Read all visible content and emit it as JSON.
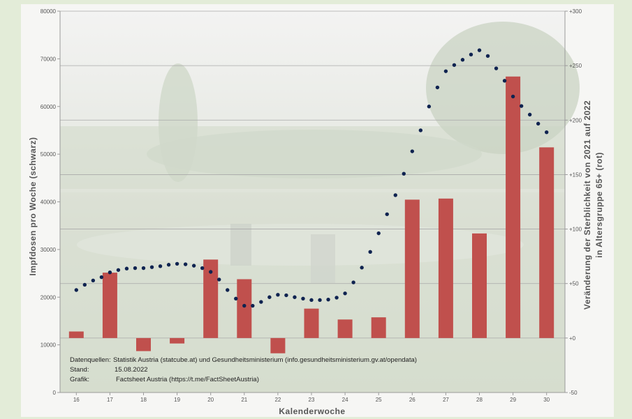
{
  "chart_data": {
    "type": "bar+line",
    "xlabel": "Kalenderwoche",
    "ylabel_left": "Impfdosen  pro Woche  (schwarz)",
    "ylabel_right_line1": "Veränderung  der  Sterblichkeit  von  2021 auf 2022",
    "ylabel_right_line2": "in  Altersgruppe  65+ (rot)",
    "categories": [
      "16",
      "17",
      "18",
      "19",
      "20",
      "21",
      "22",
      "23",
      "24",
      "25",
      "26",
      "27",
      "28",
      "29",
      "30"
    ],
    "left_axis": {
      "min": 0,
      "max": 80000,
      "ticks": [
        0,
        10000,
        20000,
        30000,
        40000,
        50000,
        60000,
        70000,
        80000
      ],
      "tick_labels": [
        "0",
        "10000",
        "20000",
        "30000",
        "40000",
        "50000",
        "60000",
        "70000",
        "80000"
      ]
    },
    "right_axis": {
      "min": -50,
      "max": 300,
      "ticks": [
        -50,
        0,
        50,
        100,
        150,
        200,
        250,
        300
      ],
      "tick_labels": [
        "-50",
        "+0",
        "+50",
        "+100",
        "+150",
        "+200",
        "+250",
        "+300"
      ]
    },
    "series": [
      {
        "axis": "right",
        "kind": "bar",
        "color": "#c0504d",
        "values": [
          6,
          60,
          -12,
          -5,
          72,
          54,
          -14,
          27,
          17,
          19,
          127,
          128,
          96,
          240,
          175
        ]
      },
      {
        "axis": "left",
        "kind": "dotted-line",
        "color": "#0f2350",
        "x": [
          16,
          16.25,
          16.5,
          16.75,
          17,
          17.25,
          17.5,
          17.75,
          18,
          18.25,
          18.5,
          18.75,
          19,
          19.25,
          19.5,
          19.75,
          20,
          20.25,
          20.5,
          20.75,
          21,
          21.25,
          21.5,
          21.75,
          22,
          22.25,
          22.5,
          22.75,
          23,
          23.25,
          23.5,
          23.75,
          24,
          24.25,
          24.5,
          24.75,
          25,
          25.25,
          25.5,
          25.75,
          26,
          26.25,
          26.5,
          26.75,
          27,
          27.25,
          27.5,
          27.75,
          28,
          28.25,
          28.5,
          28.75,
          29,
          29.25,
          29.5,
          29.75,
          30
        ],
        "values": [
          21500,
          22600,
          23500,
          24200,
          25200,
          25700,
          26000,
          26100,
          26100,
          26300,
          26500,
          26800,
          27000,
          26900,
          26600,
          26100,
          25300,
          23700,
          21500,
          19700,
          18200,
          18200,
          19000,
          20000,
          20500,
          20400,
          20000,
          19700,
          19400,
          19400,
          19500,
          19900,
          20800,
          23100,
          26200,
          29500,
          33400,
          37400,
          41400,
          45900,
          50600,
          55000,
          60000,
          64000,
          67400,
          68700,
          69800,
          70900,
          71800,
          70600,
          68000,
          65400,
          62100,
          60100,
          58300,
          56400,
          54600
        ]
      }
    ],
    "credits": {
      "l1_key": "Datenquellen:",
      "l1_val": "Statistik Austria (statcube.at) und Gesundheitsministerium (info.gesundheitsministerium.gv.at/opendata)",
      "l2_key": "Stand:",
      "l2_val": "15.08.2022",
      "l3_key": "Grafik:",
      "l3_val": "Factsheet Austria (https://t.me/FactSheetAustria)"
    },
    "colors": {
      "bar": "#c0504d",
      "line": "#0f2350",
      "page_bg": "#e3ecd8",
      "plot_bg": "#f6f6f4"
    }
  }
}
